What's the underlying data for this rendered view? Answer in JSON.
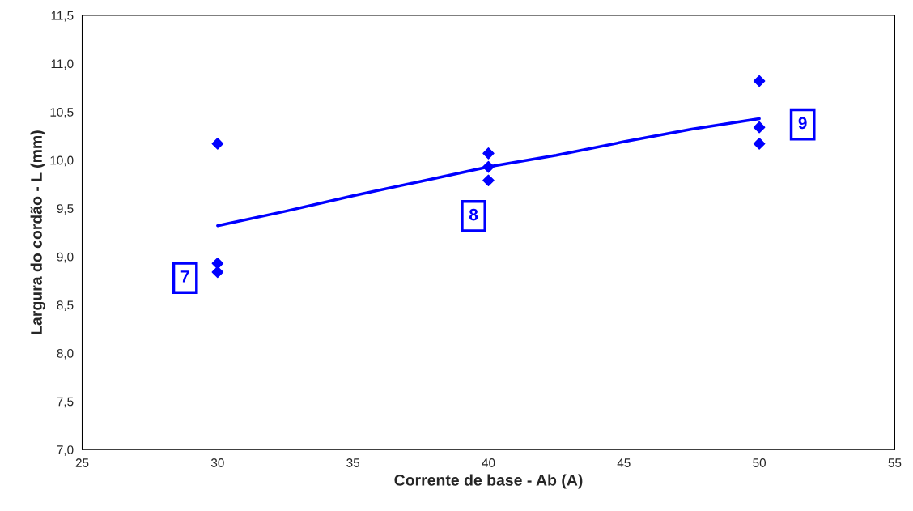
{
  "chart_data": {
    "type": "scatter",
    "xlabel": "Corrente de base - Ab (A)",
    "ylabel": "Largura do cordão - L (mm)",
    "xlim": [
      25,
      55
    ],
    "xticks": [
      25,
      30,
      35,
      40,
      45,
      50,
      55
    ],
    "ylim": [
      7.0,
      11.5
    ],
    "yticks": [
      {
        "value": 7.0,
        "label": "7,0"
      },
      {
        "value": 7.5,
        "label": "7,5"
      },
      {
        "value": 8.0,
        "label": "8,0"
      },
      {
        "value": 8.5,
        "label": "8,5"
      },
      {
        "value": 9.0,
        "label": "9,0"
      },
      {
        "value": 9.5,
        "label": "9,5"
      },
      {
        "value": 10.0,
        "label": "10,0"
      },
      {
        "value": 10.5,
        "label": "10,5"
      },
      {
        "value": 11.0,
        "label": "11,0"
      },
      {
        "value": 11.5,
        "label": "11,5"
      }
    ],
    "grid": false,
    "legend": false,
    "marker": "diamond",
    "series": [
      {
        "color": "#0000ff",
        "x": [
          30,
          30,
          30,
          40,
          40,
          40,
          50,
          50,
          50
        ],
        "values": [
          10.17,
          8.93,
          8.84,
          10.07,
          9.93,
          9.79,
          10.82,
          10.34,
          10.17
        ]
      },
      {
        "type": "line",
        "color": "#0000ff",
        "marker": "none",
        "x": [
          30,
          32.5,
          35,
          37.5,
          40,
          42.5,
          45,
          47.5,
          50
        ],
        "values": [
          9.32,
          9.47,
          9.63,
          9.78,
          9.93,
          10.05,
          10.19,
          10.32,
          10.43
        ]
      }
    ],
    "annotations": [
      {
        "text": "7",
        "x": 28.8,
        "y": 8.78
      },
      {
        "text": "8",
        "x": 39.45,
        "y": 9.42
      },
      {
        "text": "9",
        "x": 51.6,
        "y": 10.37
      }
    ]
  }
}
